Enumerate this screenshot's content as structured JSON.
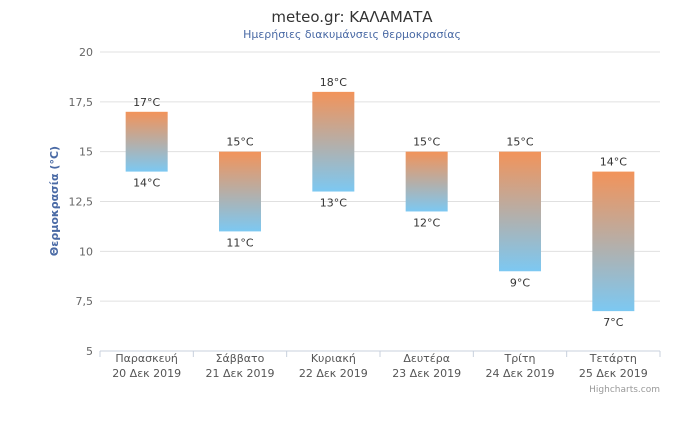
{
  "chart_data": {
    "type": "columnrange",
    "title": "meteo.gr: ΚΑΛΑΜΑΤΑ",
    "subtitle": "Ημερήσιες διακυμάνσεις θερμοκρασίας",
    "ylabel": "Θερμοκρασία (°C)",
    "ylim": [
      5,
      20
    ],
    "yticks": [
      "5",
      "7,5",
      "10",
      "12,5",
      "15",
      "17,5",
      "20"
    ],
    "ytick_values": [
      5,
      7.5,
      10,
      12.5,
      15,
      17.5,
      20
    ],
    "categories": [
      [
        "Παρασκευή",
        "20 Δεκ 2019"
      ],
      [
        "Σάββατο",
        "21 Δεκ 2019"
      ],
      [
        "Κυριακή",
        "22 Δεκ 2019"
      ],
      [
        "Δευτέρα",
        "23 Δεκ 2019"
      ],
      [
        "Τρίτη",
        "24 Δεκ 2019"
      ],
      [
        "Τετάρτη",
        "25 Δεκ 2019"
      ]
    ],
    "low": [
      14,
      11,
      13,
      12,
      9,
      7
    ],
    "high": [
      17,
      15,
      18,
      15,
      15,
      14
    ],
    "low_labels": [
      "14°C",
      "11°C",
      "13°C",
      "12°C",
      "9°C",
      "7°C"
    ],
    "high_labels": [
      "17°C",
      "15°C",
      "18°C",
      "15°C",
      "15°C",
      "14°C"
    ],
    "colors": {
      "top": "#f2935a",
      "bottom": "#7cc8f2",
      "title": "#333333",
      "subtitle": "#4a6aa5"
    },
    "grid": true,
    "credits": "Highcharts.com"
  }
}
